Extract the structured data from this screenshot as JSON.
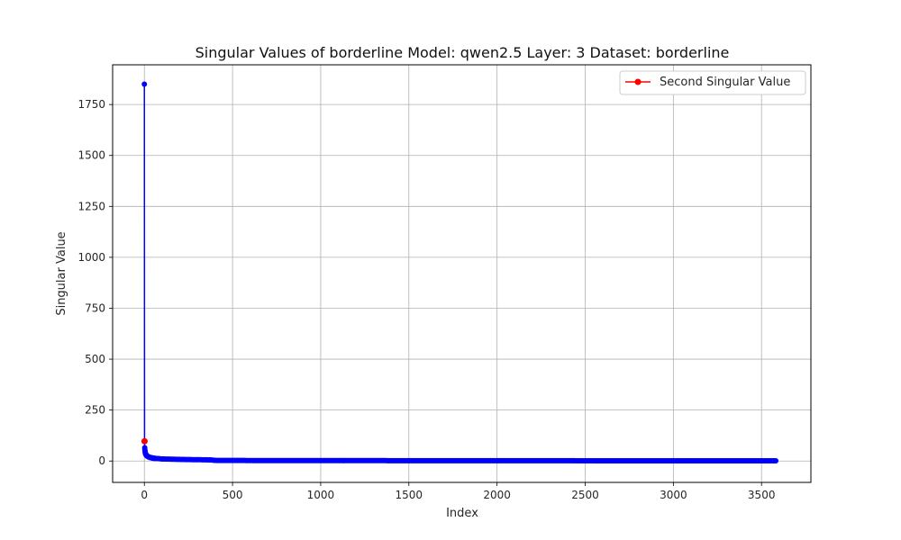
{
  "chart_data": {
    "type": "line",
    "title": "Singular Values of borderline Model: qwen2.5 Layer: 3 Dataset: borderline",
    "xlabel": "Index",
    "ylabel": "Singular Value",
    "xlim": [
      -180,
      3780
    ],
    "ylim": [
      -105,
      1945
    ],
    "xticks": [
      0,
      500,
      1000,
      1500,
      2000,
      2500,
      3000,
      3500
    ],
    "yticks": [
      0,
      250,
      500,
      750,
      1000,
      1250,
      1500,
      1750
    ],
    "grid": true,
    "legend": {
      "placement": "top-right",
      "entries": [
        "Second Singular Value"
      ]
    },
    "series": [
      {
        "color": "#0000ff",
        "marker": "circle",
        "count": 3584,
        "points": [
          [
            0,
            1850
          ],
          [
            1,
            97
          ],
          [
            2,
            65
          ],
          [
            3,
            55
          ],
          [
            4,
            48
          ],
          [
            5,
            42
          ],
          [
            6,
            38
          ],
          [
            7,
            35
          ],
          [
            8,
            33
          ],
          [
            10,
            30
          ],
          [
            12,
            28
          ],
          [
            15,
            25
          ],
          [
            20,
            22
          ],
          [
            25,
            20
          ],
          [
            30,
            18
          ],
          [
            40,
            16
          ],
          [
            50,
            14
          ],
          [
            60,
            13
          ],
          [
            80,
            12
          ],
          [
            100,
            10
          ],
          [
            150,
            9
          ],
          [
            200,
            8
          ],
          [
            250,
            7
          ],
          [
            300,
            6.5
          ],
          [
            350,
            6
          ],
          [
            380,
            5
          ],
          [
            400,
            3
          ],
          [
            500,
            2.5
          ],
          [
            1000,
            2
          ],
          [
            1500,
            1.8
          ],
          [
            2000,
            1.5
          ],
          [
            2500,
            1.3
          ],
          [
            3000,
            1.1
          ],
          [
            3500,
            0.9
          ],
          [
            3583,
            0.8
          ]
        ]
      },
      {
        "name": "Second Singular Value",
        "color": "#ff0000",
        "marker": "circle",
        "points": [
          [
            1,
            97
          ]
        ]
      }
    ]
  }
}
